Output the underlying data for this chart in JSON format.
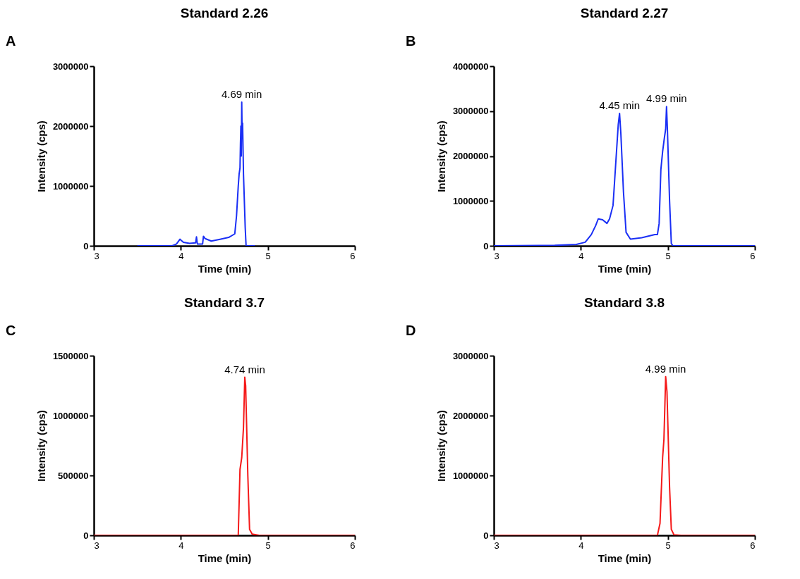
{
  "chart_data": [
    {
      "type": "line",
      "title": "Standard 2.26",
      "xlabel": "Time (min)",
      "ylabel": "Intensity (cps)",
      "annotations": [
        "A",
        {
          "text": "4.69 min",
          "x": 4.7,
          "y": 2400000
        }
      ],
      "x": [
        3.5,
        3.9,
        3.95,
        3.99,
        4.03,
        4.1,
        4.17,
        4.18,
        4.19,
        4.25,
        4.26,
        4.28,
        4.35,
        4.45,
        4.55,
        4.62,
        4.64,
        4.66,
        4.67,
        4.68,
        4.685,
        4.69,
        4.695,
        4.7,
        4.705,
        4.71,
        4.72,
        4.74,
        4.75,
        4.85
      ],
      "series": [
        {
          "color": "#1a2ff5",
          "values": [
            0,
            0,
            30000,
            110000,
            60000,
            40000,
            50000,
            150000,
            30000,
            30000,
            160000,
            120000,
            80000,
            110000,
            140000,
            200000,
            500000,
            1000000,
            1200000,
            1300000,
            1700000,
            2000000,
            1500000,
            2400000,
            1800000,
            2050000,
            1200000,
            300000,
            0,
            0
          ]
        }
      ],
      "xlim": [
        3,
        6
      ],
      "ylim": [
        0,
        3000000
      ],
      "xticks": [
        3,
        4,
        5,
        6
      ],
      "yticks": [
        0,
        1000000,
        2000000,
        3000000
      ],
      "grid": false
    },
    {
      "type": "line",
      "title": "Standard 2.27",
      "xlabel": "Time (min)",
      "ylabel": "Intensity (cps)",
      "annotations": [
        "B",
        {
          "text": "4.45 min",
          "x": 4.445,
          "y": 2950000
        },
        {
          "text": "4.99 min",
          "x": 4.985,
          "y": 3100000
        }
      ],
      "x": [
        3,
        3.7,
        3.95,
        4.05,
        4.12,
        4.17,
        4.2,
        4.25,
        4.3,
        4.33,
        4.37,
        4.4,
        4.43,
        4.445,
        4.46,
        4.49,
        4.52,
        4.57,
        4.7,
        4.85,
        4.88,
        4.9,
        4.92,
        4.94,
        4.96,
        4.975,
        4.985,
        4.995,
        5.02,
        5.04,
        5.06,
        6
      ],
      "series": [
        {
          "color": "#1a2ff5",
          "values": [
            0,
            10000,
            30000,
            80000,
            250000,
            450000,
            600000,
            580000,
            500000,
            600000,
            900000,
            1800000,
            2700000,
            2950000,
            2500000,
            1200000,
            300000,
            150000,
            180000,
            250000,
            250000,
            500000,
            1700000,
            2100000,
            2400000,
            2600000,
            3100000,
            2600000,
            1000000,
            50000,
            0,
            0
          ]
        }
      ],
      "xlim": [
        3,
        6
      ],
      "ylim": [
        0,
        4000000
      ],
      "xticks": [
        3,
        4,
        5,
        6
      ],
      "yticks": [
        0,
        1000000,
        2000000,
        3000000,
        4000000
      ],
      "grid": false
    },
    {
      "type": "line",
      "title": "Standard 3.7",
      "xlabel": "Time (min)",
      "ylabel": "Intensity (cps)",
      "annotations": [
        "C",
        {
          "text": "4.74 min",
          "x": 4.735,
          "y": 1320000
        }
      ],
      "x": [
        3,
        4.66,
        4.68,
        4.7,
        4.72,
        4.735,
        4.745,
        4.77,
        4.79,
        4.82,
        4.9,
        6
      ],
      "series": [
        {
          "color": "#f51a1a",
          "values": [
            0,
            0,
            550000,
            650000,
            900000,
            1320000,
            1250000,
            500000,
            50000,
            10000,
            0,
            0
          ]
        }
      ],
      "xlim": [
        3,
        6
      ],
      "ylim": [
        0,
        1500000
      ],
      "xticks": [
        3,
        4,
        5,
        6
      ],
      "yticks": [
        0,
        500000,
        1000000,
        1500000
      ],
      "grid": false
    },
    {
      "type": "line",
      "title": "Standard 3.8",
      "xlabel": "Time (min)",
      "ylabel": "Intensity (cps)",
      "annotations": [
        "D",
        {
          "text": "4.99 min",
          "x": 4.975,
          "y": 2650000
        }
      ],
      "x": [
        3,
        4.88,
        4.91,
        4.94,
        4.955,
        4.975,
        4.99,
        5.02,
        5.04,
        5.07,
        5.15,
        6
      ],
      "series": [
        {
          "color": "#f51a1a",
          "values": [
            0,
            0,
            200000,
            1300000,
            1600000,
            2650000,
            2400000,
            800000,
            100000,
            10000,
            0,
            0
          ]
        }
      ],
      "xlim": [
        3,
        6
      ],
      "ylim": [
        0,
        3000000
      ],
      "xticks": [
        3,
        4,
        5,
        6
      ],
      "yticks": [
        0,
        1000000,
        2000000,
        3000000
      ],
      "grid": false
    }
  ]
}
